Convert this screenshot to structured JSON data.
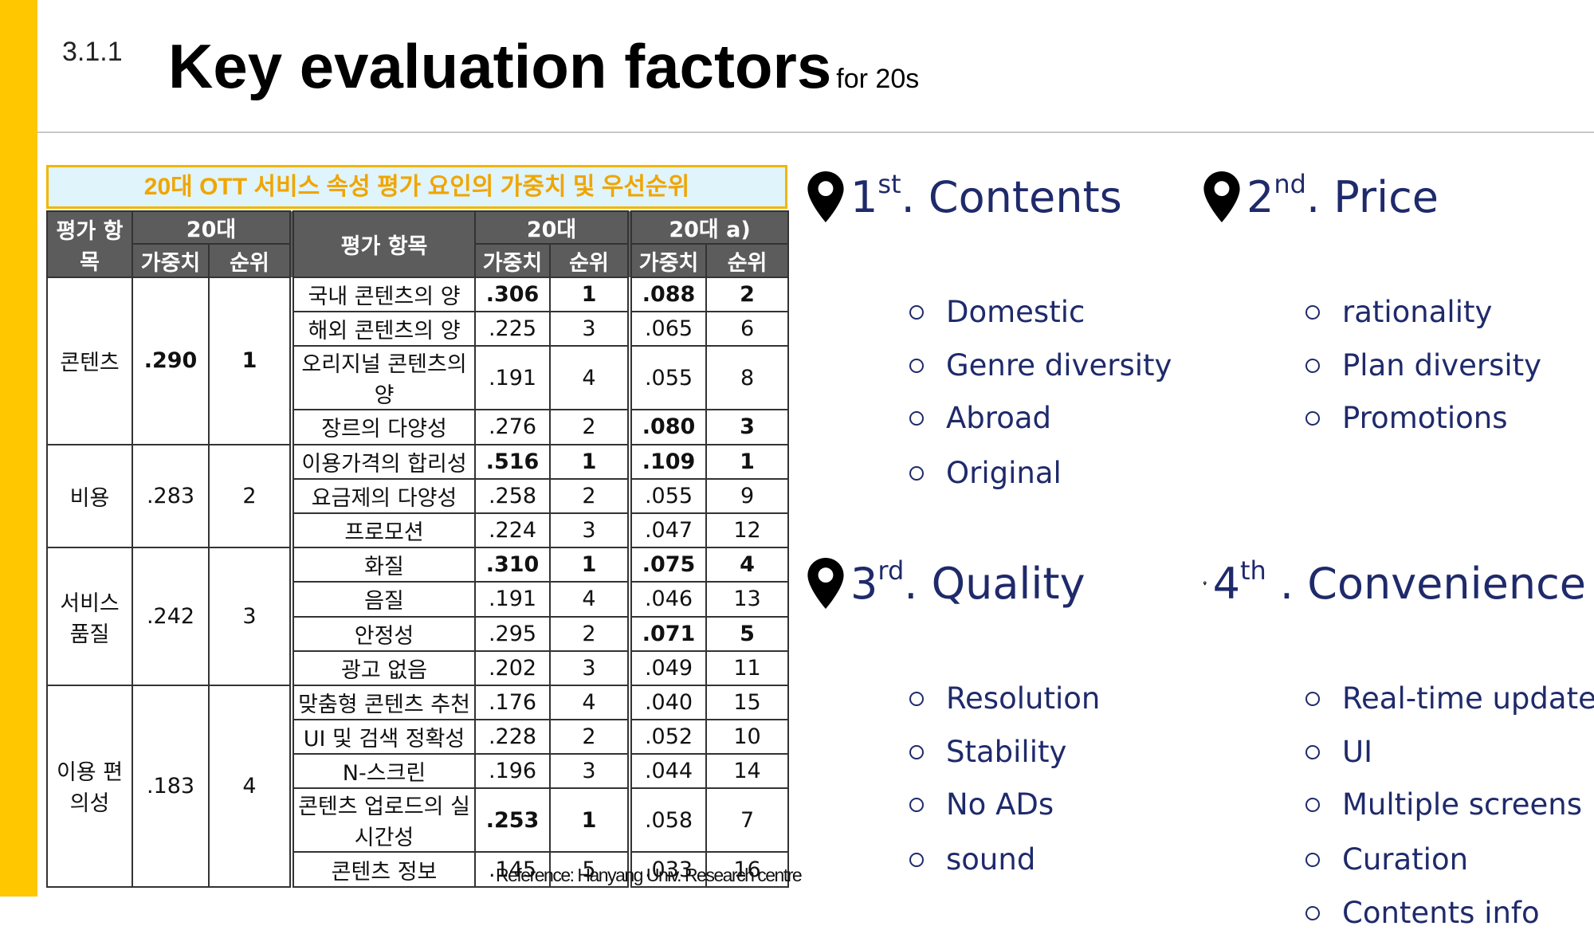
{
  "header": {
    "section_number": "3.1.1",
    "title": "Key evaluation factors",
    "subtitle": "for 20s"
  },
  "table": {
    "caption": "20대 OTT 서비스 속성 평가 요인의 가중치 및 우선순위",
    "headers": {
      "category": "평가 항목",
      "group_a": "20대",
      "group_b": "20대",
      "group_c": "20대 a)",
      "weight": "가중치",
      "rank": "순위",
      "item": "평가 항목"
    },
    "groups": [
      {
        "name": "콘텐츠",
        "weight": ".290",
        "rank": "1",
        "rows": [
          {
            "item": "국내 콘텐츠의 양",
            "w1": ".306",
            "r1": "1",
            "w2": ".088",
            "r2": "2"
          },
          {
            "item": "해외 콘텐츠의 양",
            "w1": ".225",
            "r1": "3",
            "w2": ".065",
            "r2": "6"
          },
          {
            "item": "오리지널 콘텐츠의 양",
            "w1": ".191",
            "r1": "4",
            "w2": ".055",
            "r2": "8"
          },
          {
            "item": "장르의 다양성",
            "w1": ".276",
            "r1": "2",
            "w2": ".080",
            "r2": "3"
          }
        ]
      },
      {
        "name": "비용",
        "weight": ".283",
        "rank": "2",
        "rows": [
          {
            "item": "이용가격의 합리성",
            "w1": ".516",
            "r1": "1",
            "w2": ".109",
            "r2": "1"
          },
          {
            "item": "요금제의 다양성",
            "w1": ".258",
            "r1": "2",
            "w2": ".055",
            "r2": "9"
          },
          {
            "item": "프로모션",
            "w1": ".224",
            "r1": "3",
            "w2": ".047",
            "r2": "12"
          }
        ]
      },
      {
        "name": "서비스 품질",
        "weight": ".242",
        "rank": "3",
        "rows": [
          {
            "item": "화질",
            "w1": ".310",
            "r1": "1",
            "w2": ".075",
            "r2": "4"
          },
          {
            "item": "음질",
            "w1": ".191",
            "r1": "4",
            "w2": ".046",
            "r2": "13"
          },
          {
            "item": "안정성",
            "w1": ".295",
            "r1": "2",
            "w2": ".071",
            "r2": "5"
          },
          {
            "item": "광고 없음",
            "w1": ".202",
            "r1": "3",
            "w2": ".049",
            "r2": "11"
          }
        ]
      },
      {
        "name": "이용 편의성",
        "weight": ".183",
        "rank": "4",
        "rows": [
          {
            "item": "맞춤형 콘텐츠 추천",
            "w1": ".176",
            "r1": "4",
            "w2": ".040",
            "r2": "15"
          },
          {
            "item": "UI 및 검색 정확성",
            "w1": ".228",
            "r1": "2",
            "w2": ".052",
            "r2": "10"
          },
          {
            "item": "N-스크린",
            "w1": ".196",
            "r1": "3",
            "w2": ".044",
            "r2": "14"
          },
          {
            "item": "콘텐츠 업로드의 실시간성",
            "w1": ".253",
            "r1": "1",
            "w2": ".058",
            "r2": "7"
          },
          {
            "item": "콘텐츠 정보",
            "w1": ".145",
            "r1": "5",
            "w2": ".033",
            "r2": "16"
          }
        ]
      }
    ],
    "reference": "Reference: Hanyang Univ. Research centre"
  },
  "factors": [
    {
      "rank_num": "1",
      "rank_suffix": "st",
      "label": ". Contents",
      "items": [
        "Domestic",
        "Genre diversity",
        "Abroad",
        "Original"
      ]
    },
    {
      "rank_num": "2",
      "rank_suffix": "nd",
      "label": ". Price",
      "items": [
        "rationality",
        "Plan diversity",
        "Promotions"
      ]
    },
    {
      "rank_num": "3",
      "rank_suffix": "rd",
      "label": ". Quality",
      "items": [
        "Resolution",
        "Stability",
        "No ADs",
        "sound"
      ]
    },
    {
      "rank_num": "4",
      "rank_suffix": "th",
      "label": " . Convenience",
      "items": [
        "Real-time update",
        "UI",
        "Multiple screens",
        "Curation",
        "Contents info"
      ]
    }
  ],
  "icons": {
    "pin": "map-pin-icon",
    "bullet": "hollow-circle-bullet-icon"
  },
  "colors": {
    "accent": "#FFC700",
    "heading_text": "#1f2a6b",
    "caption_text": "#F0A500",
    "caption_bg": "#dff4fb",
    "table_header_bg": "#5c5c5c"
  }
}
